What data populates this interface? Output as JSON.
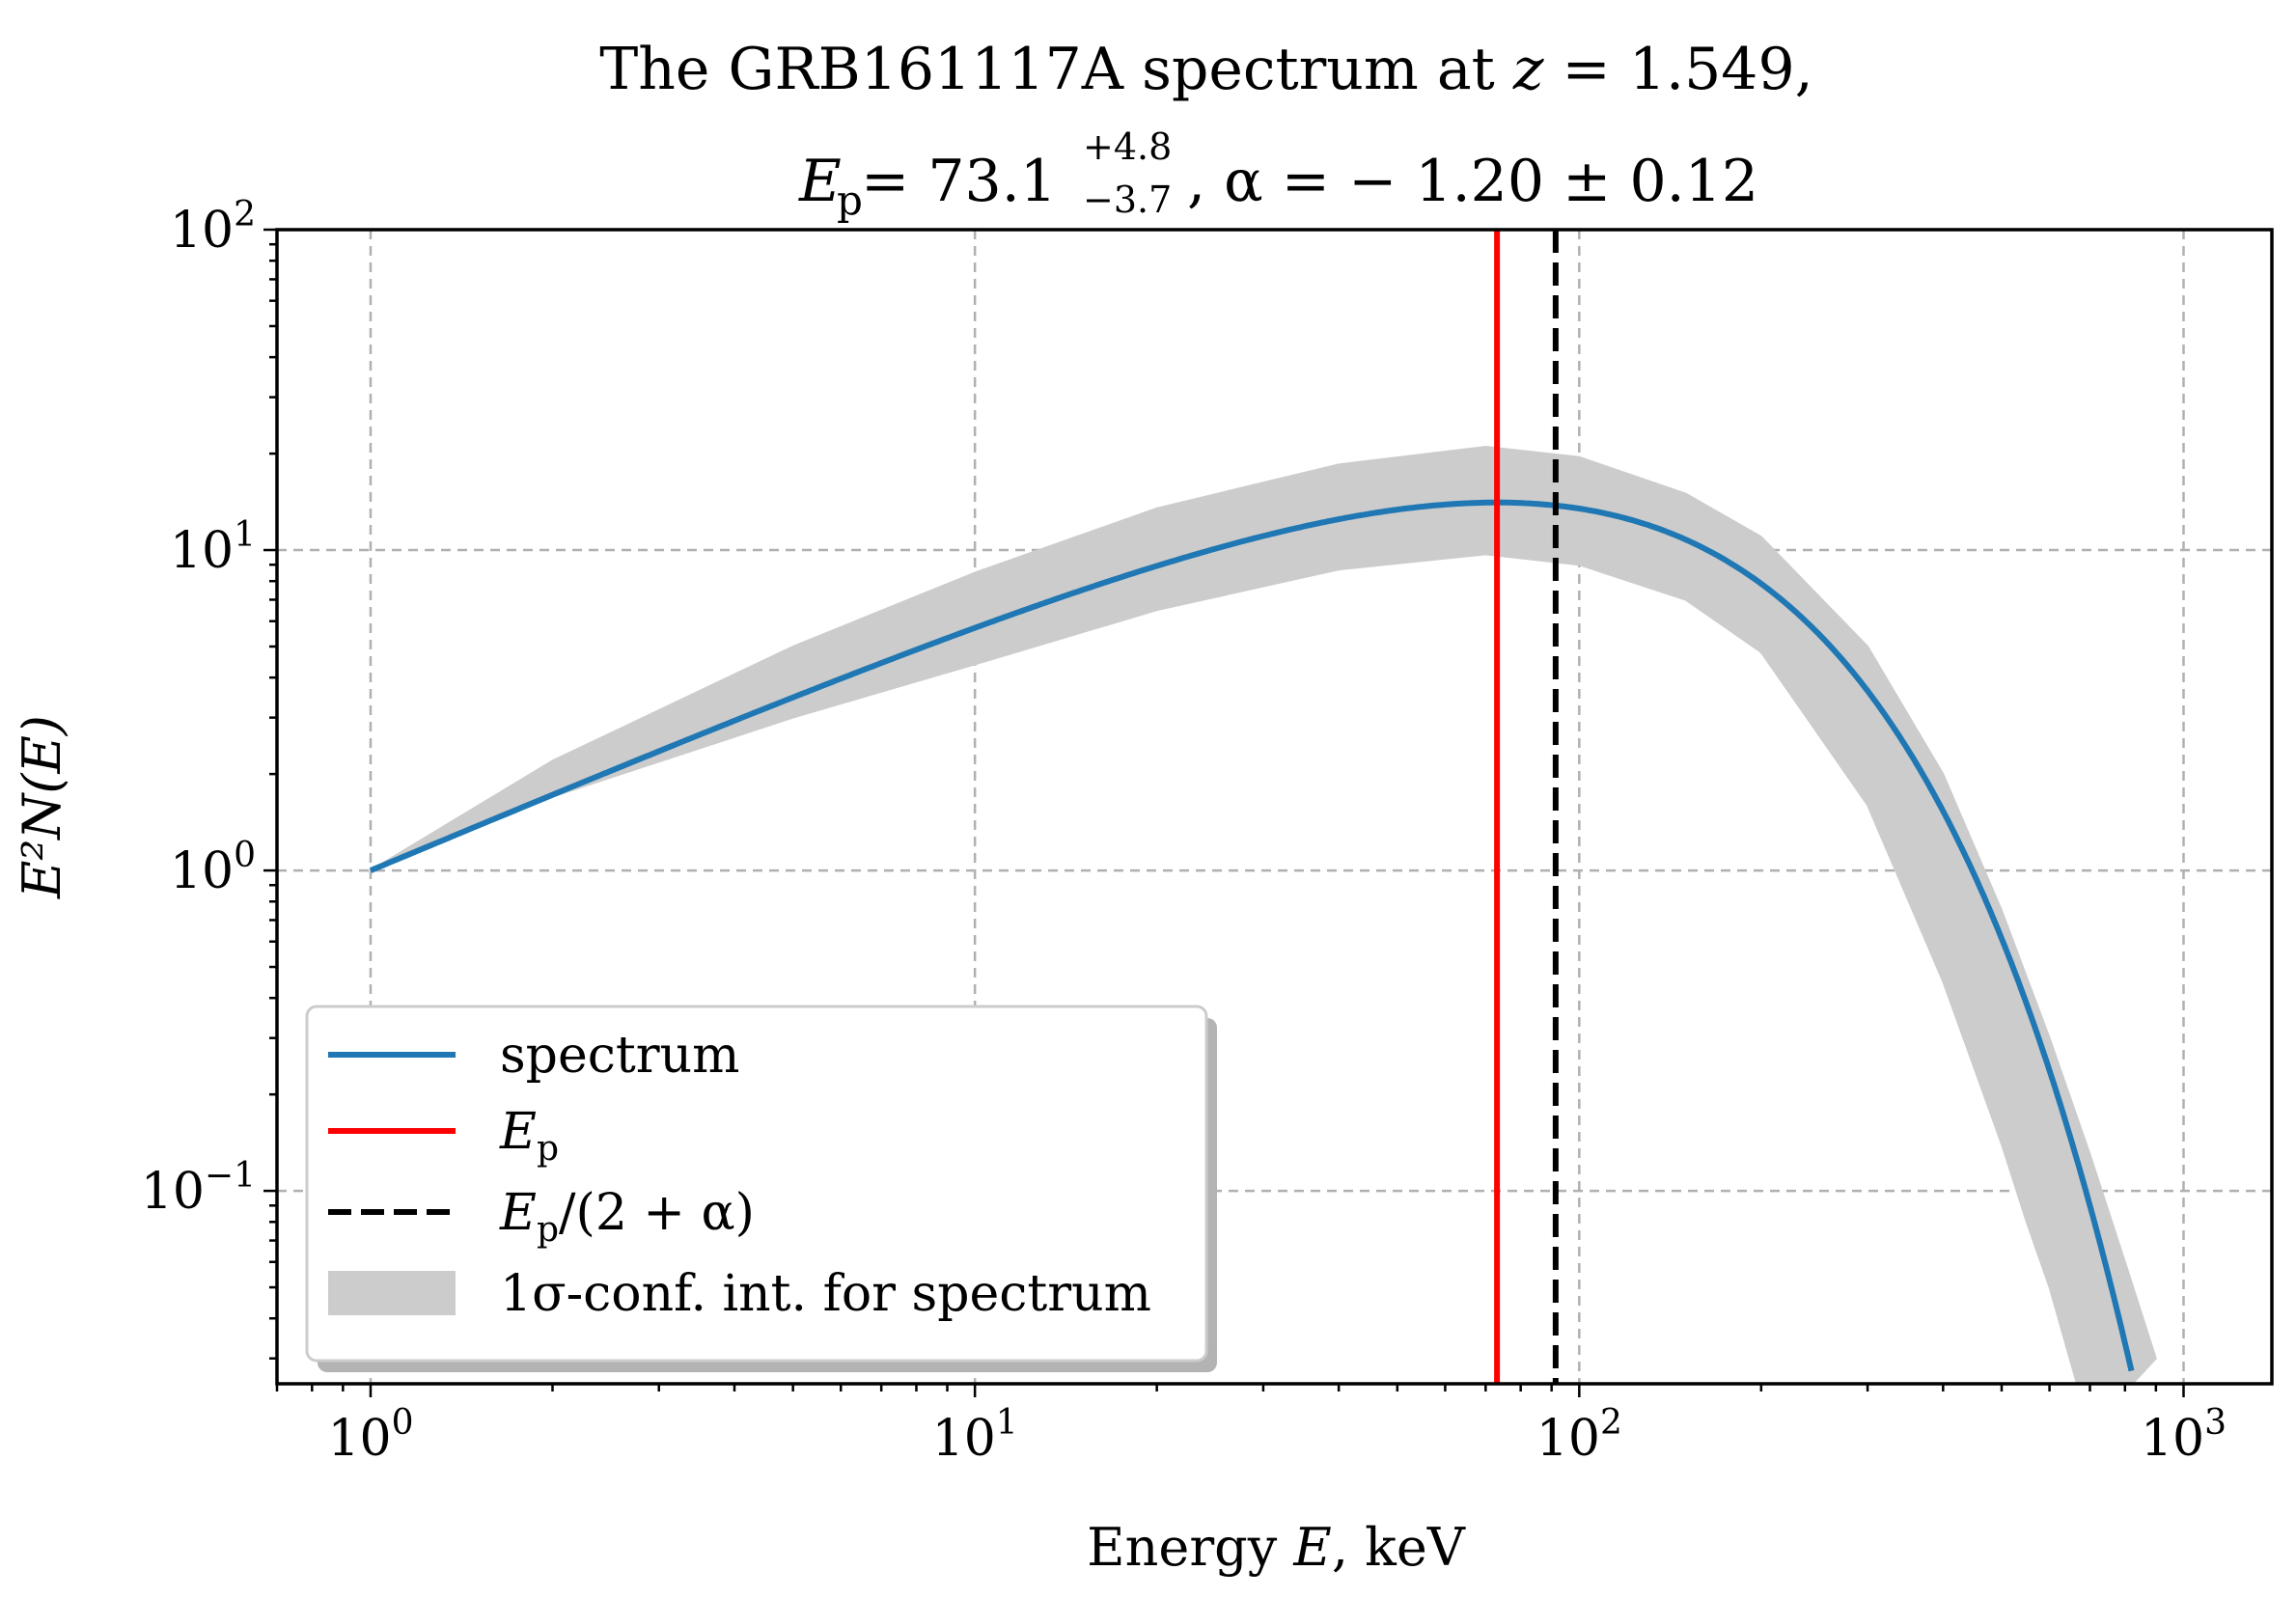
{
  "chart_data": {
    "type": "line",
    "title": {
      "line1": {
        "prefix": "The GRB161117A spectrum at ",
        "z_symbol": "z",
        "z_rest": " = 1.549,"
      },
      "line2": {
        "ep_symbol": "E",
        "ep_subscript": "p",
        "ep_eq": " = 73.1",
        "ep_err_plus": "+4.8",
        "ep_err_minus": "−3.7",
        "alpha_text": ", α = − 1.20 ± 0.12"
      }
    },
    "xlabel": {
      "text": "Energy ",
      "symbol": "E",
      "unit": ", keV"
    },
    "ylabel": {
      "text": "E²N(E)"
    },
    "x_scale": "log",
    "y_scale": "log",
    "xlim": [
      0.7,
      1400
    ],
    "ylim": [
      0.025,
      100
    ],
    "x_ticks": [
      {
        "value": 1,
        "base": "10",
        "exp": "0"
      },
      {
        "value": 10,
        "base": "10",
        "exp": "1"
      },
      {
        "value": 100,
        "base": "10",
        "exp": "2"
      },
      {
        "value": 1000,
        "base": "10",
        "exp": "3"
      }
    ],
    "y_ticks": [
      {
        "value": 0.1,
        "base": "10",
        "exp": "−1"
      },
      {
        "value": 1,
        "base": "10",
        "exp": "0"
      },
      {
        "value": 10,
        "base": "10",
        "exp": "1"
      },
      {
        "value": 100,
        "base": "10",
        "exp": "2"
      }
    ],
    "grid": true,
    "legend_position": "lower-left",
    "legend": [
      {
        "label": "spectrum",
        "kind": "line"
      },
      {
        "label_symbol": "E",
        "label_sub": "p",
        "kind": "line"
      },
      {
        "label_symbol": "E",
        "label_sub": "p",
        "label_rest": "/(2 + α)",
        "kind": "dashed"
      },
      {
        "label": "1σ-conf. int. for spectrum",
        "kind": "patch"
      }
    ],
    "series": [
      {
        "name": "spectrum",
        "color": "#1f77b4",
        "model": "cutoff power law, E²N(E) normalized to 1 at E = 1 keV",
        "alpha": -1.2,
        "Ep": 73.1,
        "x_range": [
          1,
          820
        ]
      },
      {
        "name": "Ep",
        "color": "#ff0000",
        "x": 73.1
      },
      {
        "name": "Ep/(2+α)",
        "color": "#000000",
        "x": 91.4
      },
      {
        "name": "1σ-conf. int. for spectrum",
        "color": "#cccccc",
        "upper": [
          [
            1,
            1.0
          ],
          [
            2,
            2.2
          ],
          [
            5,
            5.0
          ],
          [
            10,
            8.5
          ],
          [
            20,
            13.5
          ],
          [
            40,
            18.5
          ],
          [
            70,
            21.0
          ],
          [
            100,
            19.5
          ],
          [
            150,
            15.0
          ],
          [
            200,
            11.0
          ],
          [
            300,
            5.0
          ],
          [
            400,
            2.0
          ],
          [
            500,
            0.75
          ],
          [
            600,
            0.3
          ],
          [
            700,
            0.13
          ],
          [
            800,
            0.06
          ],
          [
            900,
            0.03
          ]
        ],
        "lower": [
          [
            1,
            1.0
          ],
          [
            2,
            1.7
          ],
          [
            5,
            3.0
          ],
          [
            10,
            4.4
          ],
          [
            20,
            6.5
          ],
          [
            40,
            8.7
          ],
          [
            70,
            9.7
          ],
          [
            100,
            9.0
          ],
          [
            150,
            7.0
          ],
          [
            200,
            4.8
          ],
          [
            300,
            1.6
          ],
          [
            400,
            0.45
          ],
          [
            500,
            0.14
          ],
          [
            550,
            0.08
          ],
          [
            600,
            0.05
          ],
          [
            700,
            0.018
          ]
        ]
      }
    ]
  }
}
